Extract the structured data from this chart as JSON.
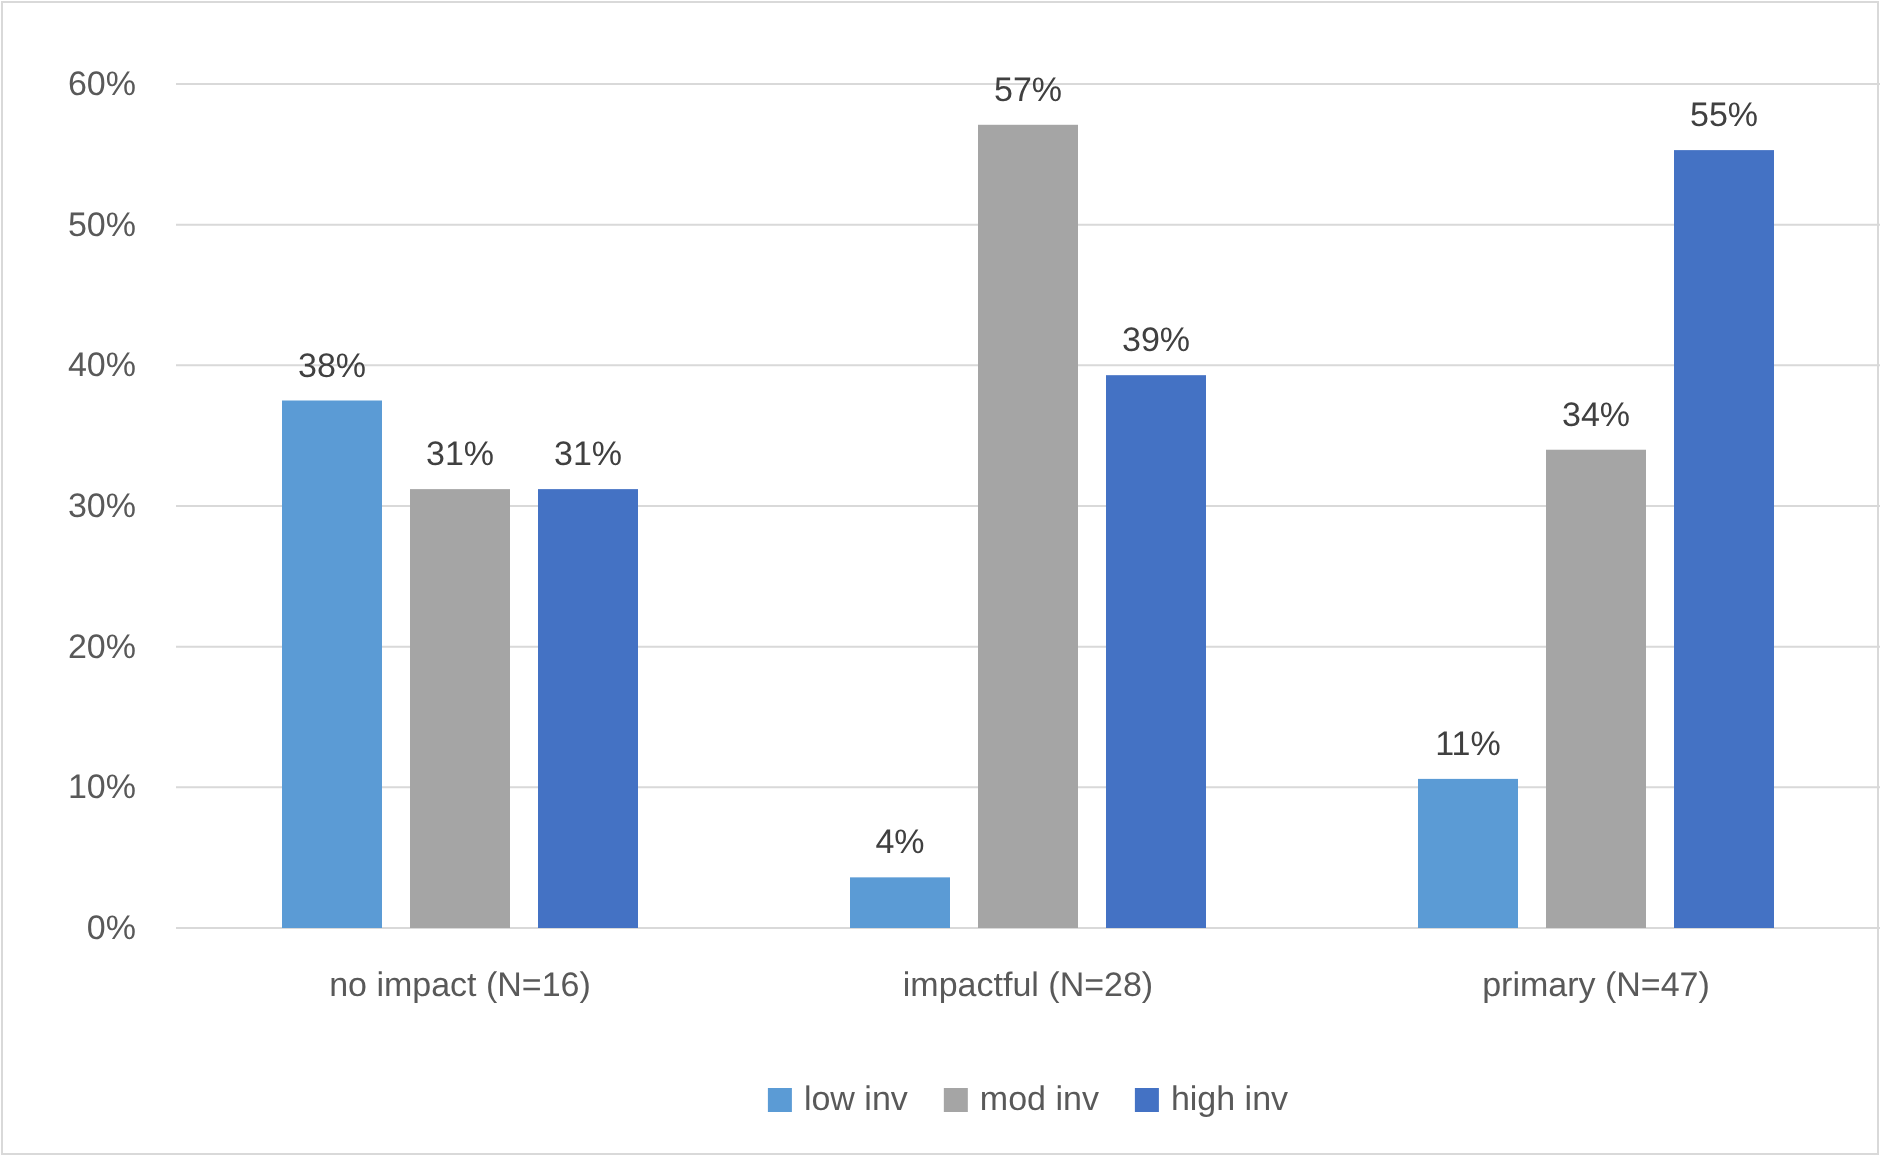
{
  "chart_data": {
    "type": "bar",
    "categories": [
      "no impact (N=16)",
      "impactful (N=28)",
      "primary (N=47)"
    ],
    "series": [
      {
        "name": "low inv",
        "color": "#5b9bd5",
        "values": [
          37.5,
          3.6,
          10.6
        ],
        "value_labels": [
          "38%",
          "4%",
          "11%"
        ]
      },
      {
        "name": "mod inv",
        "color": "#a5a5a5",
        "values": [
          31.2,
          57.1,
          34
        ],
        "value_labels": [
          "31%",
          "57%",
          "34%"
        ]
      },
      {
        "name": "high inv",
        "color": "#4472c4",
        "values": [
          31.2,
          39.3,
          55.3
        ],
        "value_labels": [
          "31%",
          "39%",
          "55%"
        ]
      }
    ],
    "ylim": [
      0,
      60
    ],
    "yticks": [
      {
        "value": 0,
        "label": "0%"
      },
      {
        "value": 10,
        "label": "10%"
      },
      {
        "value": 20,
        "label": "20%"
      },
      {
        "value": 30,
        "label": "30%"
      },
      {
        "value": 40,
        "label": "40%"
      },
      {
        "value": 50,
        "label": "50%"
      },
      {
        "value": 60,
        "label": "60%"
      }
    ],
    "grid": "y",
    "legend": "bottom"
  }
}
